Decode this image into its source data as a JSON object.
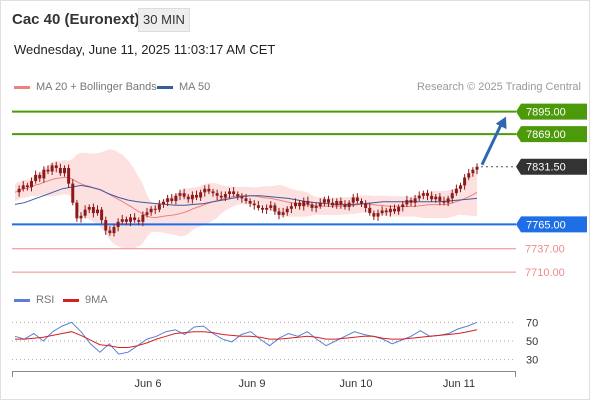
{
  "header": {
    "title": "Cac 40 (Euronext)",
    "timeframe": "30 MIN",
    "timestamp": "Wednesday, June 11, 2025 11:03:17 AM CET"
  },
  "legend": {
    "ma20_label": "MA 20 + Bollinger Bands",
    "ma50_label": "MA 50",
    "credit": "Research © 2025 Trading Central",
    "rsi_label": "RSI",
    "rsi_ma_label": "9MA"
  },
  "colors": {
    "ma20": "#f08080",
    "ma50": "#3a5ba0",
    "bollinger_fill": "#fde0e0",
    "resistance": "#4c9a0a",
    "support": "#1e6fe6",
    "minor_support": "#f08a8a",
    "candle": "#8b1a1a",
    "current": "#333333",
    "arrow": "#2f67b1",
    "rsi": "#5b7fd6",
    "rsi_ma": "#d62020"
  },
  "chart_data": [
    {
      "type": "line",
      "subtype": "candlestick",
      "title": "Cac 40 (Euronext)",
      "ylim": [
        7694,
        7913
      ],
      "x_ticks": [
        "Jun 6",
        "Jun 9",
        "Jun 10",
        "Jun 11"
      ],
      "levels": [
        {
          "label": "7895.00",
          "value": 7895,
          "kind": "resistance"
        },
        {
          "label": "7869.00",
          "value": 7869,
          "kind": "resistance"
        },
        {
          "label": "7831.50",
          "value": 7831.5,
          "kind": "current"
        },
        {
          "label": "7765.00",
          "value": 7765,
          "kind": "support"
        },
        {
          "label": "7737.00",
          "value": 7737,
          "kind": "minor_support"
        },
        {
          "label": "7710.00",
          "value": 7710,
          "kind": "minor_support"
        }
      ],
      "price_path": [
        7802,
        7806,
        7810,
        7808,
        7815,
        7822,
        7818,
        7828,
        7826,
        7833,
        7830,
        7824,
        7830,
        7812,
        7790,
        7772,
        7775,
        7782,
        7785,
        7778,
        7782,
        7770,
        7758,
        7755,
        7762,
        7768,
        7771,
        7768,
        7773,
        7770,
        7768,
        7776,
        7779,
        7783,
        7782,
        7788,
        7791,
        7795,
        7792,
        7798,
        7801,
        7797,
        7794,
        7799,
        7796,
        7802,
        7806,
        7803,
        7801,
        7798,
        7796,
        7800,
        7803,
        7800,
        7797,
        7795,
        7792,
        7789,
        7787,
        7784,
        7782,
        7784,
        7787,
        7780,
        7776,
        7779,
        7783,
        7786,
        7790,
        7786,
        7792,
        7788,
        7784,
        7786,
        7790,
        7794,
        7790,
        7787,
        7792,
        7788,
        7785,
        7790,
        7796,
        7792,
        7789,
        7784,
        7778,
        7774,
        7778,
        7781,
        7779,
        7783,
        7780,
        7785,
        7788,
        7793,
        7790,
        7795,
        7798,
        7801,
        7798,
        7794,
        7797,
        7792,
        7790,
        7795,
        7801,
        7806,
        7810,
        7819,
        7824,
        7828,
        7831.5
      ],
      "ma50_path": [
        7788,
        7790,
        7794,
        7798,
        7802,
        7806,
        7808,
        7810,
        7808,
        7805,
        7800,
        7796,
        7793,
        7791,
        7790,
        7789,
        7788,
        7787,
        7787,
        7788,
        7789,
        7791,
        7793,
        7795,
        7797,
        7798,
        7798,
        7797,
        7796,
        7795,
        7793,
        7791,
        7790,
        7789,
        7788,
        7788,
        7788,
        7789,
        7790,
        7791,
        7791,
        7791,
        7791,
        7791,
        7791,
        7791,
        7792,
        7793,
        7794,
        7795
      ]
    },
    {
      "type": "line",
      "title": "RSI",
      "ylim": [
        20,
        80
      ],
      "y_ticks": [
        70,
        50,
        30
      ],
      "series": [
        {
          "name": "RSI",
          "values": [
            55,
            52,
            58,
            50,
            60,
            66,
            70,
            60,
            47,
            38,
            47,
            36,
            38,
            45,
            52,
            55,
            60,
            62,
            57,
            65,
            66,
            58,
            52,
            49,
            57,
            60,
            52,
            45,
            53,
            58,
            55,
            60,
            52,
            45,
            50,
            55,
            60,
            57,
            55,
            52,
            47,
            51,
            55,
            61,
            55,
            56,
            58,
            63,
            66,
            70
          ]
        },
        {
          "name": "9MA",
          "values": [
            52,
            52,
            53,
            54,
            56,
            58,
            60,
            56,
            51,
            46,
            45,
            43,
            43,
            45,
            48,
            52,
            55,
            58,
            59,
            60,
            60,
            59,
            57,
            56,
            55,
            55,
            54,
            52,
            52,
            53,
            54,
            55,
            54,
            52,
            52,
            53,
            54,
            55,
            55,
            53,
            52,
            52,
            53,
            54,
            55,
            56,
            57,
            58,
            60,
            62
          ]
        }
      ]
    }
  ]
}
